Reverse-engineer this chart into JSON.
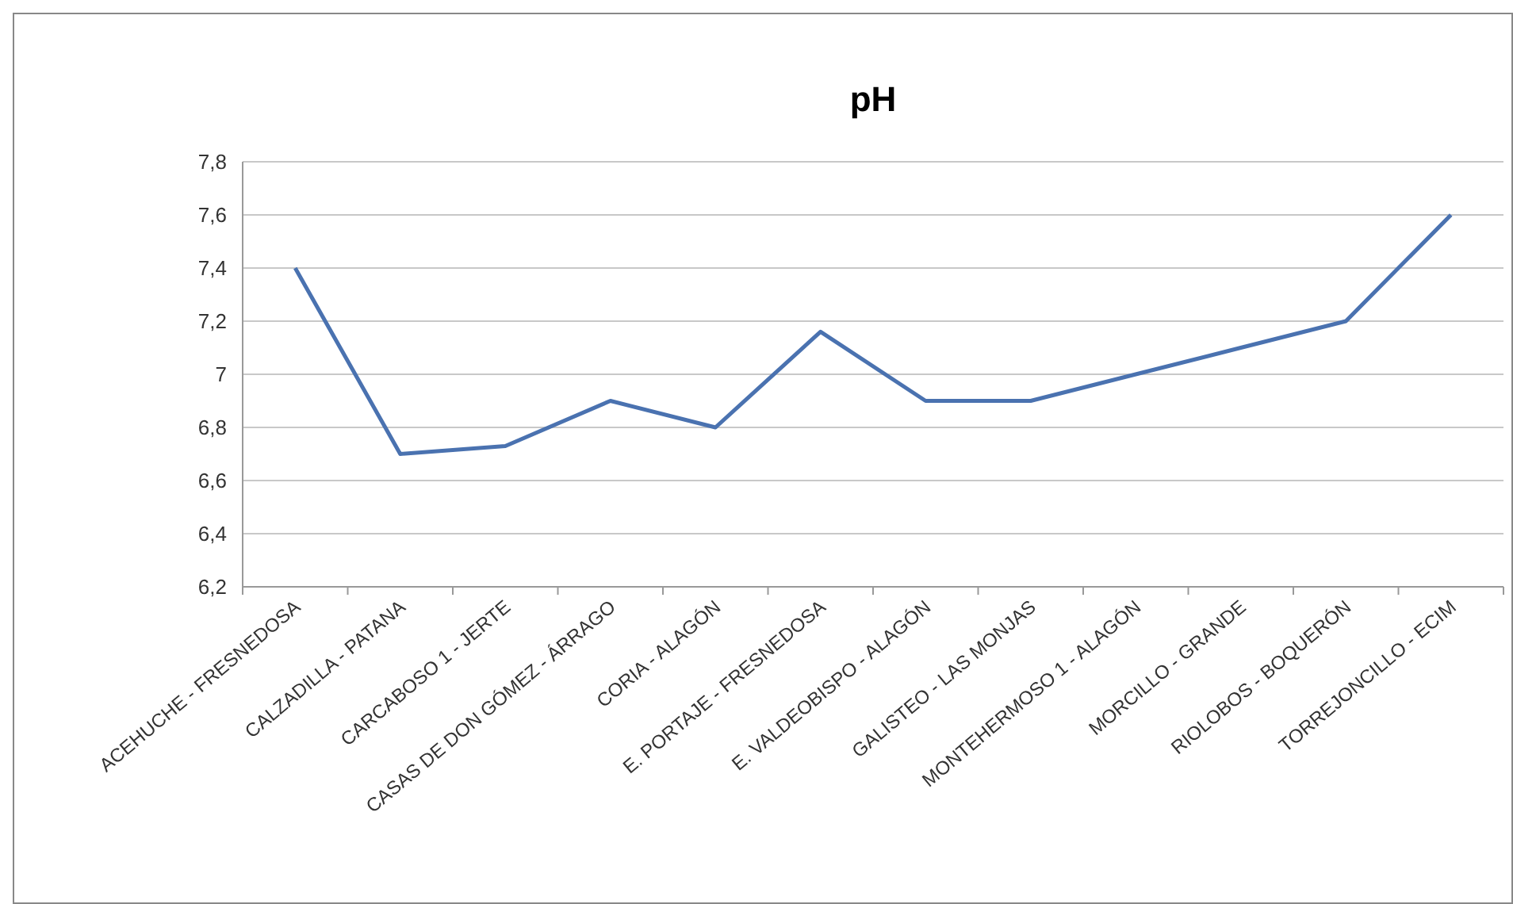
{
  "chart_data": {
    "type": "line",
    "title": "pH",
    "categories": [
      "ACEHUCHE - FRESNEDOSA",
      "CALZADILLA - PATANA",
      "CARCABOSO 1 - JERTE",
      "CASAS DE DON GÓMEZ - ÁRRAGO",
      "CORIA - ALAGÓN",
      "E. PORTAJE - FRESNEDOSA",
      "E. VALDEOBISPO - ALAGÓN",
      "GALISTEO - LAS MONJAS",
      "MONTEHERMOSO 1 - ALAGÓN",
      "MORCILLO - GRANDE",
      "RIOLOBOS - BOQUERÓN",
      "TORREJONCILLO - ECIM"
    ],
    "series": [
      {
        "color": "#4a72b0",
        "values": [
          7.4,
          6.7,
          6.73,
          6.9,
          6.8,
          7.16,
          6.9,
          6.9,
          7.0,
          7.1,
          7.2,
          7.6
        ]
      }
    ],
    "ylim": [
      6.2,
      7.8
    ],
    "yticks": [
      {
        "value": 6.2,
        "label": "6,2"
      },
      {
        "value": 6.4,
        "label": "6,4"
      },
      {
        "value": 6.6,
        "label": "6,6"
      },
      {
        "value": 6.8,
        "label": "6,8"
      },
      {
        "value": 7,
        "label": "7"
      },
      {
        "value": 7.2,
        "label": "7,2"
      },
      {
        "value": 7.4,
        "label": "7,4"
      },
      {
        "value": 7.6,
        "label": "7,6"
      },
      {
        "value": 7.8,
        "label": "7,8"
      }
    ],
    "grid": "y",
    "marker": "none",
    "line_style": "solid"
  }
}
